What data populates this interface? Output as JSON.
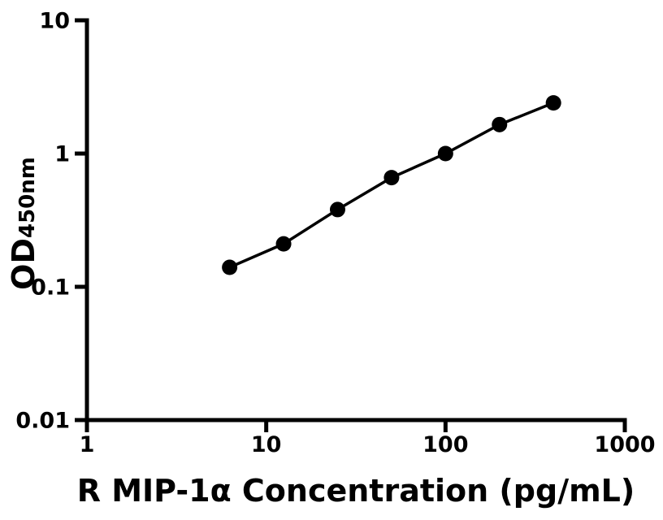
{
  "figure": {
    "background_color": "#ffffff",
    "axis_color": "#000000",
    "marker_color": "#000000",
    "line_color": "#000000"
  },
  "chart_data": {
    "type": "scatter",
    "subtype": "standard-curve-connected-points",
    "x": [
      6.25,
      12.5,
      25,
      50,
      100,
      200,
      400
    ],
    "y": [
      0.14,
      0.21,
      0.38,
      0.66,
      1.0,
      1.65,
      2.4
    ],
    "xlabel": "R MIP-1α Concentration (pg/mL)",
    "ylabel_main": "OD",
    "ylabel_sub": "450nm",
    "x_scale": "log",
    "y_scale": "log",
    "xlim": [
      1,
      1000
    ],
    "ylim": [
      0.01,
      10
    ],
    "x_ticks": [
      1,
      10,
      100,
      1000
    ],
    "x_tick_labels": [
      "1",
      "10",
      "100",
      "1000"
    ],
    "y_ticks": [
      0.01,
      0.1,
      1,
      10
    ],
    "y_tick_labels": [
      "0.01",
      "0.1",
      "1",
      "10"
    ],
    "grid": false,
    "legend": null,
    "marker": "filled-circle"
  }
}
